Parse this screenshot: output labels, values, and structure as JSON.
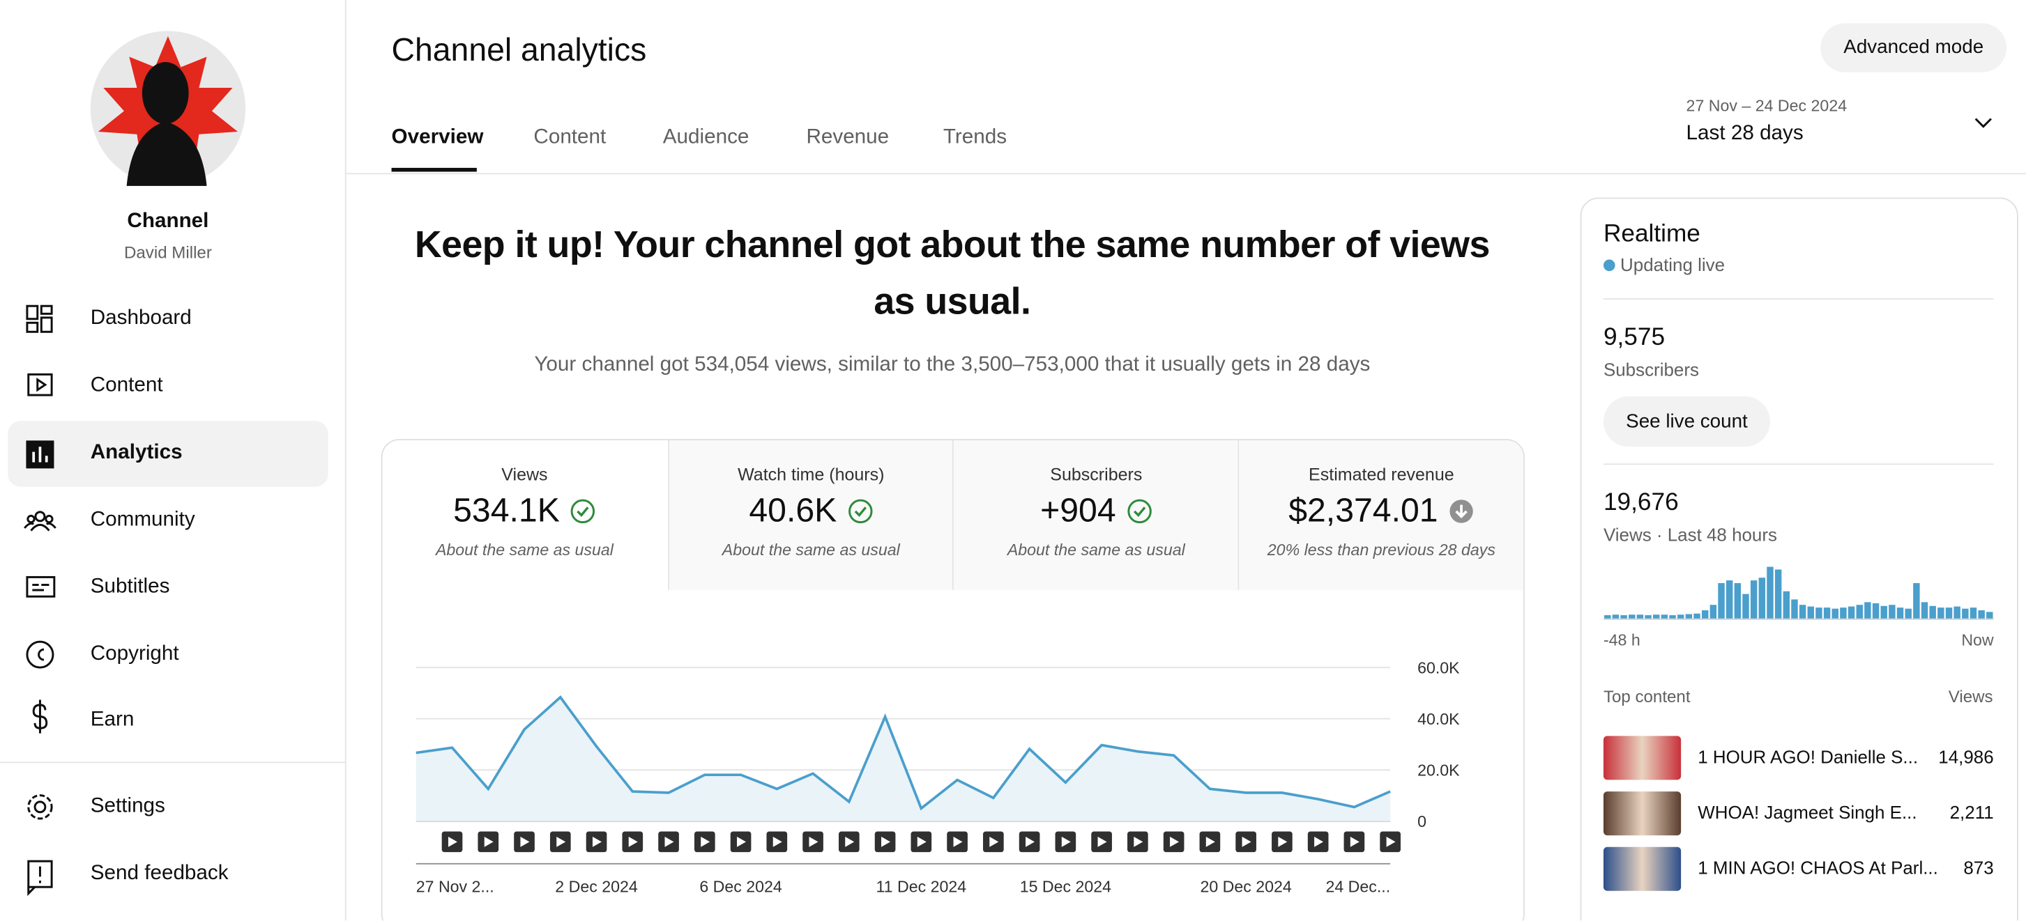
{
  "sidebar": {
    "channel_title": "Channel",
    "channel_name": "David Miller",
    "nav": [
      "Dashboard",
      "Content",
      "Analytics",
      "Community",
      "Subtitles",
      "Copyright",
      "Earn"
    ],
    "footer": [
      "Settings",
      "Send feedback"
    ]
  },
  "header": {
    "title": "Channel analytics",
    "advanced_button": "Advanced mode",
    "tabs": [
      "Overview",
      "Content",
      "Audience",
      "Revenue",
      "Trends"
    ],
    "date_range": "27 Nov – 24 Dec 2024",
    "period": "Last 28 days"
  },
  "summary": {
    "headline": "Keep it up! Your channel got about the same number of views as usual.",
    "detail": "Your channel got 534,054 views, similar to the 3,500–753,000 that it usually gets in 28 days"
  },
  "metrics": [
    {
      "label": "Views",
      "value": "534.1K",
      "note": "About the same as usual"
    },
    {
      "label": "Watch time (hours)",
      "value": "40.6K",
      "note": "About the same as usual"
    },
    {
      "label": "Subscribers",
      "value": "+904",
      "note": "About the same as usual"
    },
    {
      "label": "Estimated revenue",
      "value": "$2,374.01",
      "note": "20% less than previous 28 days"
    }
  ],
  "realtime": {
    "title": "Realtime",
    "status": "Updating live",
    "subscribers": "9,575",
    "subscribers_label": "Subscribers",
    "live_button": "See live count",
    "views": "19,676",
    "views_label": "Views · Last 48 hours",
    "top_header": "Top content",
    "top_views_header": "Views",
    "top_content": [
      {
        "title": "1 HOUR AGO! Danielle S...",
        "views": "14,986"
      },
      {
        "title": "WHOA! Jagmeet Singh E...",
        "views": "2,211"
      },
      {
        "title": "1 MIN AGO! CHAOS At Parl...",
        "views": "873"
      }
    ]
  },
  "chart_data": [
    {
      "type": "line",
      "color": "#4a9fcc",
      "fill": "#eaf3f8",
      "categories": [
        "27 Nov 2...",
        null,
        null,
        null,
        null,
        "2 Dec 2024",
        null,
        null,
        null,
        "6 Dec 2024",
        null,
        null,
        null,
        null,
        "11 Dec 2024",
        null,
        null,
        null,
        "15 Dec 2024",
        null,
        null,
        null,
        null,
        "20 Dec 2024",
        null,
        null,
        null,
        "24 Dec..."
      ],
      "values": [
        26700,
        28700,
        12600,
        35800,
        48400,
        29200,
        11600,
        11100,
        18100,
        18100,
        12600,
        18600,
        7600,
        40800,
        5000,
        16100,
        9100,
        28200,
        15100,
        29700,
        27200,
        25700,
        12600,
        11100,
        11100,
        8600,
        5500,
        11600
      ],
      "ylim": [
        0,
        60000
      ],
      "yticks": [
        0,
        {
          "value": 20000,
          "label": "20.0K"
        },
        {
          "value": 40000,
          "label": "40.0K"
        },
        {
          "value": 60000,
          "label": "60.0K"
        }
      ],
      "grid": true
    },
    {
      "type": "bar",
      "color": "#4a9fcc",
      "x_labels": [
        "-48 h",
        "Now"
      ],
      "values": [
        60,
        70,
        60,
        70,
        70,
        60,
        70,
        70,
        60,
        70,
        80,
        90,
        150,
        250,
        650,
        700,
        650,
        450,
        700,
        750,
        950,
        900,
        500,
        350,
        250,
        220,
        200,
        200,
        180,
        200,
        220,
        250,
        300,
        280,
        230,
        250,
        200,
        180,
        650,
        300,
        230,
        200,
        200,
        220,
        180,
        200,
        150,
        120
      ]
    }
  ]
}
